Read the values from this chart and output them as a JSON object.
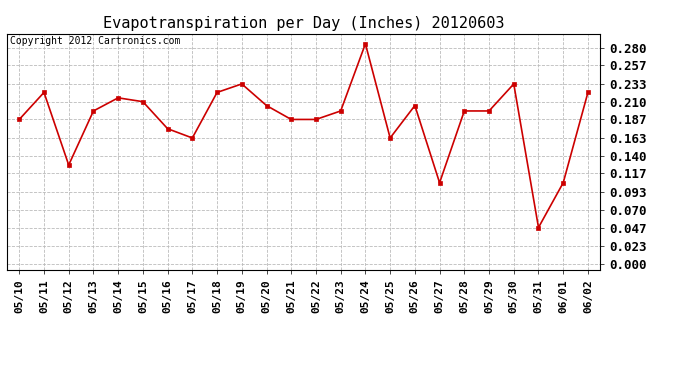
{
  "title": "Evapotranspiration per Day (Inches) 20120603",
  "copyright": "Copyright 2012 Cartronics.com",
  "dates": [
    "05/10",
    "05/11",
    "05/12",
    "05/13",
    "05/14",
    "05/15",
    "05/16",
    "05/17",
    "05/18",
    "05/19",
    "05/20",
    "05/21",
    "05/22",
    "05/23",
    "05/24",
    "05/25",
    "05/26",
    "05/27",
    "05/28",
    "05/29",
    "05/30",
    "05/31",
    "06/01",
    "06/02"
  ],
  "values": [
    0.187,
    0.222,
    0.128,
    0.198,
    0.215,
    0.21,
    0.175,
    0.163,
    0.222,
    0.233,
    0.205,
    0.187,
    0.187,
    0.198,
    0.285,
    0.163,
    0.205,
    0.105,
    0.198,
    0.198,
    0.233,
    0.047,
    0.105,
    0.222
  ],
  "line_color": "#cc0000",
  "marker": "s",
  "marker_size": 3,
  "background_color": "#ffffff",
  "plot_bg_color": "#ffffff",
  "grid_color": "#bbbbbb",
  "title_fontsize": 11,
  "copyright_fontsize": 7,
  "tick_fontsize": 8,
  "ytick_fontsize": 9,
  "yticks": [
    0.0,
    0.023,
    0.047,
    0.07,
    0.093,
    0.117,
    0.14,
    0.163,
    0.187,
    0.21,
    0.233,
    0.257,
    0.28
  ],
  "ylim": [
    -0.008,
    0.298
  ]
}
